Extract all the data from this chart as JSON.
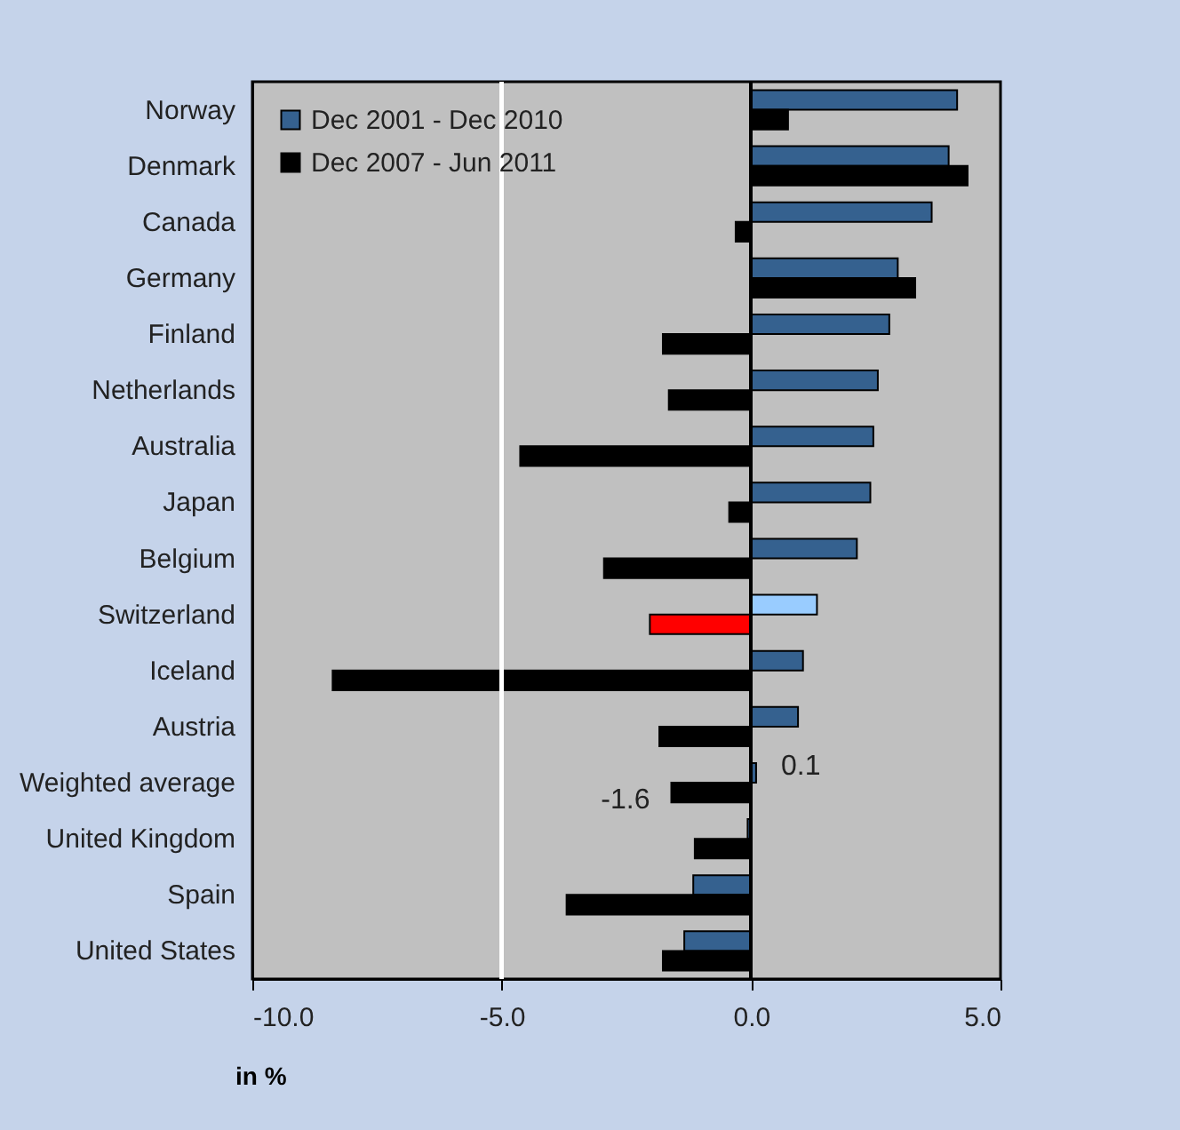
{
  "chart_data": {
    "type": "bar",
    "orientation": "horizontal",
    "xlabel": "in %",
    "categories": [
      "Norway",
      "Denmark",
      "Canada",
      "Germany",
      "Finland",
      "Netherlands",
      "Australia",
      "Japan",
      "Belgium",
      "Switzerland",
      "Iceland",
      "Austria",
      "Weighted average",
      "United Kingdom",
      "Spain",
      "United States"
    ],
    "series": [
      {
        "name": "Dec 2001 - Dec 2010",
        "color": "#35618f",
        "colors": [
          "#35618f",
          "#35618f",
          "#35618f",
          "#35618f",
          "#35618f",
          "#35618f",
          "#35618f",
          "#35618f",
          "#35618f",
          "#99ccff",
          "#35618f",
          "#35618f",
          "#35618f",
          "#35618f",
          "#35618f",
          "#35618f"
        ],
        "values": [
          4.13,
          3.96,
          3.62,
          2.94,
          2.77,
          2.54,
          2.45,
          2.39,
          2.12,
          1.32,
          1.04,
          0.94,
          0.1,
          -0.07,
          -1.16,
          -1.34
        ],
        "value_labels": [
          null,
          null,
          null,
          null,
          null,
          null,
          null,
          null,
          null,
          null,
          null,
          null,
          "0.1",
          null,
          null,
          null
        ]
      },
      {
        "name": "Dec 2007 - Jun 2011",
        "color": "#000000",
        "colors": [
          "#000000",
          "#000000",
          "#000000",
          "#000000",
          "#000000",
          "#000000",
          "#000000",
          "#000000",
          "#000000",
          "#ff0000",
          "#000000",
          "#000000",
          "#000000",
          "#000000",
          "#000000",
          "#000000"
        ],
        "values": [
          0.74,
          4.34,
          -0.31,
          3.29,
          -1.77,
          -1.65,
          -4.63,
          -0.44,
          -2.95,
          -2.03,
          -8.39,
          -1.84,
          -1.6,
          -1.13,
          -3.7,
          -1.77
        ],
        "value_labels": [
          null,
          null,
          null,
          null,
          null,
          null,
          null,
          null,
          null,
          null,
          null,
          null,
          "-1.6",
          null,
          null,
          null
        ]
      }
    ],
    "xlim": [
      -10,
      5
    ],
    "xticks": [
      {
        "value": -10,
        "label": "-10.0"
      },
      {
        "value": -5,
        "label": "-5.0"
      },
      {
        "value": 0,
        "label": "0.0"
      },
      {
        "value": 5,
        "label": "5.0"
      }
    ],
    "ref_lines": [
      {
        "axis": "x",
        "value": -5,
        "color": "#ffffff"
      }
    ],
    "legend": "top left"
  }
}
